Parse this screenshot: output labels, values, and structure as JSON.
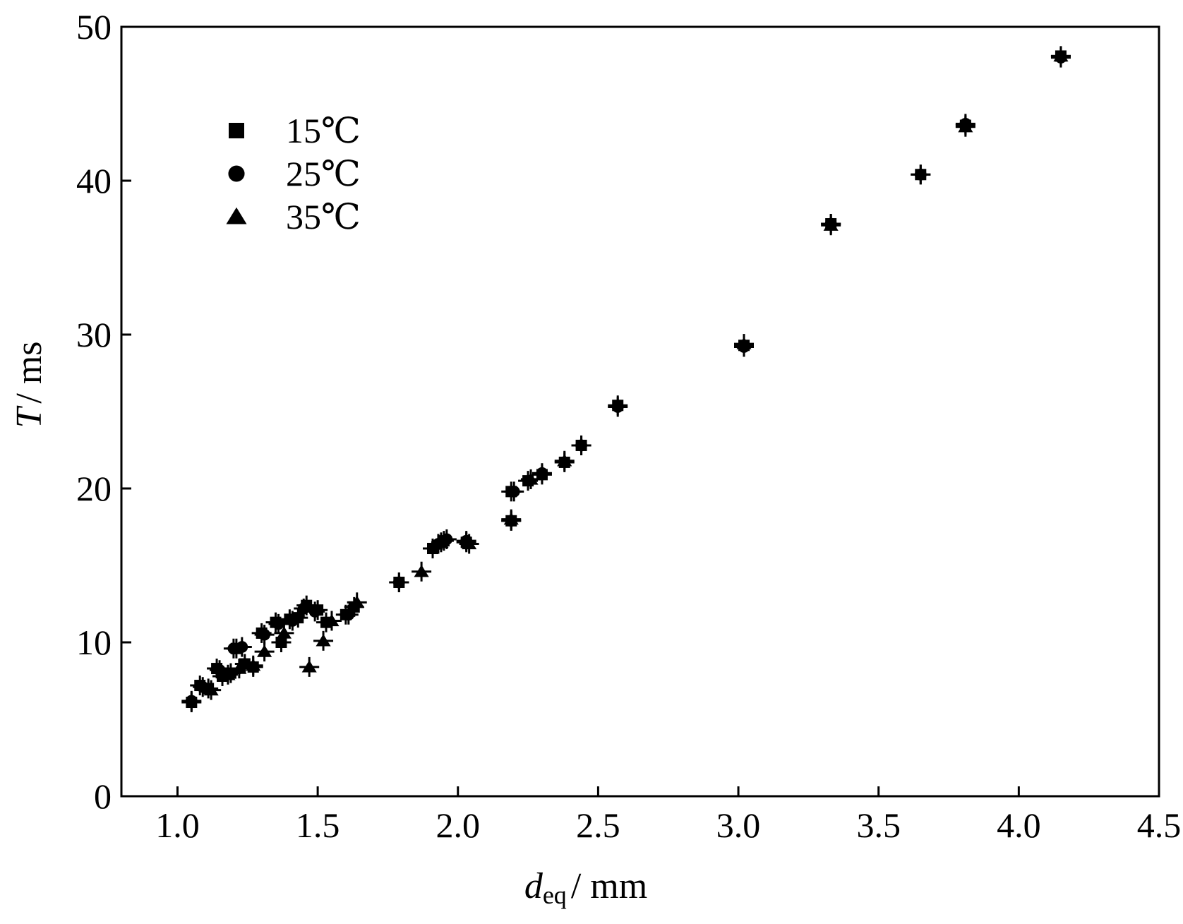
{
  "chart_data": {
    "type": "scatter",
    "xlabel": {
      "symbol": "d",
      "subscript": "eq",
      "unit": "/ mm"
    },
    "ylabel": {
      "symbol": "T",
      "unit": "/ ms"
    },
    "xlim": [
      0.8,
      4.5
    ],
    "ylim": [
      0,
      50
    ],
    "xticks": [
      "1.0",
      "1.5",
      "2.0",
      "2.5",
      "3.0",
      "3.5",
      "4.0",
      "4.5"
    ],
    "yticks": [
      "0",
      "10",
      "20",
      "30",
      "40",
      "50"
    ],
    "grid": false,
    "legend_position": "top-left",
    "series": [
      {
        "name": "15℃",
        "marker": "square",
        "points": [
          [
            1.05,
            6.1
          ],
          [
            1.08,
            7.2
          ],
          [
            1.11,
            7.0
          ],
          [
            1.14,
            8.3
          ],
          [
            1.16,
            7.8
          ],
          [
            1.19,
            8.0
          ],
          [
            1.21,
            9.6
          ],
          [
            1.24,
            8.6
          ],
          [
            1.27,
            8.4
          ],
          [
            1.3,
            10.6
          ],
          [
            1.35,
            11.3
          ],
          [
            1.37,
            10.0
          ],
          [
            1.4,
            11.5
          ],
          [
            1.43,
            11.6
          ],
          [
            1.46,
            12.4
          ],
          [
            1.5,
            12.1
          ],
          [
            1.53,
            11.3
          ],
          [
            1.6,
            11.8
          ],
          [
            1.63,
            12.3
          ],
          [
            1.79,
            13.9
          ],
          [
            1.91,
            16.1
          ],
          [
            1.95,
            16.6
          ],
          [
            2.03,
            16.5
          ],
          [
            2.19,
            17.9
          ],
          [
            2.19,
            19.8
          ],
          [
            2.25,
            20.5
          ],
          [
            2.3,
            20.9
          ],
          [
            2.38,
            21.7
          ],
          [
            2.44,
            22.8
          ],
          [
            2.57,
            25.4
          ],
          [
            3.02,
            29.3
          ],
          [
            3.33,
            37.2
          ],
          [
            3.65,
            40.4
          ],
          [
            3.81,
            43.6
          ],
          [
            4.15,
            48.1
          ]
        ]
      },
      {
        "name": "25℃",
        "marker": "circle",
        "points": [
          [
            1.05,
            6.2
          ],
          [
            1.09,
            7.1
          ],
          [
            1.15,
            8.2
          ],
          [
            1.2,
            9.6
          ],
          [
            1.23,
            9.7
          ],
          [
            1.31,
            10.5
          ],
          [
            1.36,
            11.2
          ],
          [
            1.41,
            11.4
          ],
          [
            1.45,
            12.2
          ],
          [
            1.49,
            12.0
          ],
          [
            1.61,
            11.8
          ],
          [
            1.79,
            13.9
          ],
          [
            1.93,
            16.4
          ],
          [
            1.96,
            16.7
          ],
          [
            2.03,
            16.6
          ],
          [
            2.19,
            17.9
          ],
          [
            2.2,
            19.8
          ],
          [
            2.3,
            21.0
          ],
          [
            2.44,
            22.8
          ],
          [
            2.57,
            25.3
          ],
          [
            3.02,
            29.2
          ],
          [
            3.33,
            37.2
          ],
          [
            3.65,
            40.4
          ],
          [
            3.81,
            43.7
          ],
          [
            4.15,
            48.0
          ]
        ]
      },
      {
        "name": "35℃",
        "marker": "triangle",
        "points": [
          [
            1.12,
            6.9
          ],
          [
            1.18,
            7.9
          ],
          [
            1.22,
            8.3
          ],
          [
            1.27,
            8.5
          ],
          [
            1.31,
            9.4
          ],
          [
            1.38,
            10.6
          ],
          [
            1.47,
            8.4
          ],
          [
            1.52,
            10.1
          ],
          [
            1.55,
            11.4
          ],
          [
            1.64,
            12.6
          ],
          [
            1.87,
            14.6
          ],
          [
            1.94,
            16.5
          ],
          [
            2.04,
            16.4
          ],
          [
            2.19,
            18.0
          ],
          [
            2.26,
            20.6
          ],
          [
            2.38,
            21.8
          ],
          [
            3.02,
            29.4
          ],
          [
            3.33,
            37.1
          ],
          [
            3.81,
            43.5
          ],
          [
            4.15,
            48.1
          ]
        ]
      }
    ]
  }
}
